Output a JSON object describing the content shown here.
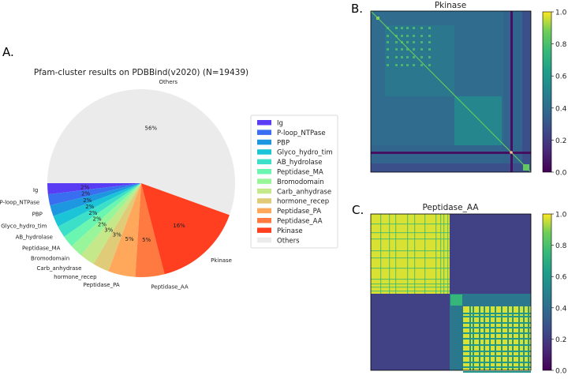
{
  "panels": {
    "a_label": "A.",
    "b_label": "B.",
    "c_label": "C."
  },
  "chart_data": [
    {
      "type": "pie",
      "title": "Pfam-cluster results on PDBBind(v2020) (N=19439)",
      "start": "left (180°), counter-clockwise",
      "categories": [
        "Ig",
        "P-loop_NTPase",
        "PBP",
        "Glyco_hydro_tim",
        "AB_hydrolase",
        "Peptidase_MA",
        "Bromodomain",
        "Carb_anhydrase",
        "hormone_recep",
        "Peptidase_PA",
        "Peptidase_AA",
        "Pkinase",
        "Others"
      ],
      "values": [
        1.9,
        1.9,
        1.9,
        1.95,
        2.0,
        2.05,
        2.2,
        2.6,
        2.8,
        4.7,
        5.0,
        15.5,
        55.5
      ],
      "labels_pct": [
        "2%",
        "2%",
        "2%",
        "2%",
        "2%",
        "2%",
        "2%",
        "3%",
        "3%",
        "5%",
        "5%",
        "16%",
        "56%"
      ],
      "colors": [
        "#5a3cf5",
        "#3a6ef0",
        "#1d98e0",
        "#1cc4d8",
        "#3ce0c8",
        "#6af5b0",
        "#98f59a",
        "#c4e88a",
        "#e0cc78",
        "#ffa85c",
        "#ff7a40",
        "#ff3f1f",
        "#ebebeb"
      ],
      "legend_position": "right"
    },
    {
      "type": "heatmap",
      "title": "Pkinase",
      "colormap": "viridis",
      "colorbar_ticks": [
        "0.0",
        "0.2",
        "0.4",
        "0.6",
        "0.8",
        "1.0"
      ],
      "vmin": 0.0,
      "vmax": 1.0,
      "description": "pairwise similarity matrix; background ~0.4, block at ~0.5, dark separator rows/cols ~0.05"
    },
    {
      "type": "heatmap",
      "title": "Peptidase_AA",
      "colormap": "viridis",
      "colorbar_ticks": [
        "0.0",
        "0.2",
        "0.4",
        "0.6",
        "0.8",
        "1.0"
      ],
      "vmin": 0.0,
      "vmax": 1.0,
      "description": "two high-similarity blocks (~0.95) with low off-diagonal (~0.2) and intermediate band (~0.45)"
    }
  ]
}
